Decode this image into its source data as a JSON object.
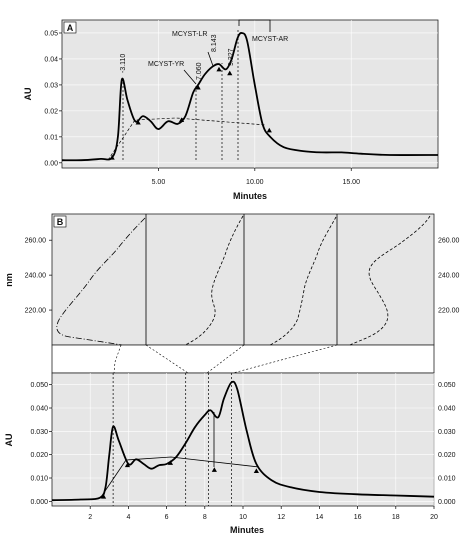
{
  "chart_data": [
    {
      "panel": "A",
      "type": "line",
      "xlabel": "Minutes",
      "ylabel": "AU",
      "xlim": [
        0,
        19.5
      ],
      "ylim": [
        -0.002,
        0.055
      ],
      "xticks": [
        {
          "v": 5,
          "label": "5.00"
        },
        {
          "v": 10,
          "label": "10.00"
        },
        {
          "v": 15,
          "label": "15.00"
        }
      ],
      "yticks": [
        {
          "v": 0,
          "label": "0.00"
        },
        {
          "v": 0.01,
          "label": "0.01"
        },
        {
          "v": 0.02,
          "label": "0.02"
        },
        {
          "v": 0.03,
          "label": "0.03"
        },
        {
          "v": 0.04,
          "label": "0.04"
        },
        {
          "v": 0.05,
          "label": "0.05"
        }
      ],
      "grid": true,
      "series": [
        {
          "values": [
            [
              0.0,
              0.001
            ],
            [
              1.0,
              0.001
            ],
            [
              2.0,
              0.0015
            ],
            [
              2.6,
              0.002
            ],
            [
              2.9,
              0.01
            ],
            [
              3.1,
              0.032
            ],
            [
              3.4,
              0.024
            ],
            [
              3.8,
              0.016
            ],
            [
              4.2,
              0.018
            ],
            [
              4.6,
              0.016
            ],
            [
              5.0,
              0.013
            ],
            [
              5.5,
              0.016
            ],
            [
              6.0,
              0.015
            ],
            [
              6.4,
              0.018
            ],
            [
              6.8,
              0.027
            ],
            [
              7.06,
              0.03
            ],
            [
              7.4,
              0.034
            ],
            [
              7.8,
              0.037
            ],
            [
              8.14,
              0.038
            ],
            [
              8.5,
              0.036
            ],
            [
              8.8,
              0.04
            ],
            [
              9.1,
              0.048
            ],
            [
              9.327,
              0.05
            ],
            [
              9.6,
              0.047
            ],
            [
              10.0,
              0.03
            ],
            [
              10.4,
              0.015
            ],
            [
              10.8,
              0.01
            ],
            [
              11.5,
              0.006
            ],
            [
              12.5,
              0.0045
            ],
            [
              13.5,
              0.004
            ],
            [
              14.5,
              0.004
            ],
            [
              15.5,
              0.0035
            ],
            [
              17.0,
              0.003
            ],
            [
              19.5,
              0.003
            ]
          ]
        }
      ],
      "annotations": [
        {
          "text": "-3.110",
          "x": 3.11
        },
        {
          "text": "MCYST-YR",
          "x": 7.06
        },
        {
          "text": "7.060",
          "x": 7.06
        },
        {
          "text": "MCYST-LR",
          "x": 8.143
        },
        {
          "text": "8.143",
          "x": 8.143
        },
        {
          "text": "9.327",
          "x": 9.327
        },
        {
          "text": "MCYST-AR",
          "x": 9.327
        }
      ],
      "markers": [
        [
          2.6,
          0.002
        ],
        [
          3.95,
          0.0155
        ],
        [
          6.2,
          0.0165
        ],
        [
          10.75,
          0.0125
        ],
        [
          7.06,
          0.029
        ],
        [
          8.143,
          0.036
        ],
        [
          8.7,
          0.0345
        ]
      ]
    },
    {
      "panel": "B",
      "type": "line",
      "xlabel": "Minutes",
      "ylabel_spectra": "nm",
      "ylabel": "AU",
      "xlim": [
        0,
        20
      ],
      "ylim": [
        -0.002,
        0.055
      ],
      "xticks": [
        {
          "v": 2,
          "label": "2"
        },
        {
          "v": 4,
          "label": "4"
        },
        {
          "v": 6,
          "label": "6"
        },
        {
          "v": 8,
          "label": "8"
        },
        {
          "v": 10,
          "label": "10"
        },
        {
          "v": 12,
          "label": "12"
        },
        {
          "v": 14,
          "label": "14"
        },
        {
          "v": 16,
          "label": "16"
        },
        {
          "v": 18,
          "label": "18"
        },
        {
          "v": 20,
          "label": "20"
        }
      ],
      "yticks": [
        {
          "v": 0,
          "label": "0.000"
        },
        {
          "v": 0.01,
          "label": "0.010"
        },
        {
          "v": 0.02,
          "label": "0.020"
        },
        {
          "v": 0.03,
          "label": "0.030"
        },
        {
          "v": 0.04,
          "label": "0.040"
        },
        {
          "v": 0.05,
          "label": "0.050"
        }
      ],
      "spectra_ylim": [
        200,
        275
      ],
      "spectra_yticks": [
        {
          "v": 220,
          "label": "220.00"
        },
        {
          "v": 240,
          "label": "240.00"
        },
        {
          "v": 260,
          "label": "260.00"
        }
      ],
      "series": [
        {
          "values": [
            [
              0.0,
              0.0005
            ],
            [
              1.5,
              0.0008
            ],
            [
              2.5,
              0.0015
            ],
            [
              2.8,
              0.006
            ],
            [
              3.0,
              0.02
            ],
            [
              3.2,
              0.032
            ],
            [
              3.5,
              0.026
            ],
            [
              4.0,
              0.016
            ],
            [
              4.4,
              0.018
            ],
            [
              4.8,
              0.016
            ],
            [
              5.2,
              0.014
            ],
            [
              5.6,
              0.0155
            ],
            [
              6.0,
              0.016
            ],
            [
              6.5,
              0.019
            ],
            [
              7.0,
              0.025
            ],
            [
              7.5,
              0.032
            ],
            [
              8.0,
              0.037
            ],
            [
              8.3,
              0.039
            ],
            [
              8.7,
              0.036
            ],
            [
              9.0,
              0.044
            ],
            [
              9.4,
              0.051
            ],
            [
              9.7,
              0.048
            ],
            [
              10.2,
              0.03
            ],
            [
              10.7,
              0.016
            ],
            [
              11.5,
              0.009
            ],
            [
              12.5,
              0.006
            ],
            [
              14.0,
              0.004
            ],
            [
              16.0,
              0.003
            ],
            [
              18.0,
              0.0025
            ],
            [
              20.0,
              0.002
            ]
          ]
        }
      ],
      "markers": [
        [
          2.7,
          0.002
        ],
        [
          3.95,
          0.0155
        ],
        [
          6.2,
          0.0165
        ],
        [
          8.5,
          0.0135
        ],
        [
          10.7,
          0.013
        ]
      ],
      "peak_lines": [
        3.2,
        7.0,
        8.2,
        9.4
      ]
    }
  ]
}
